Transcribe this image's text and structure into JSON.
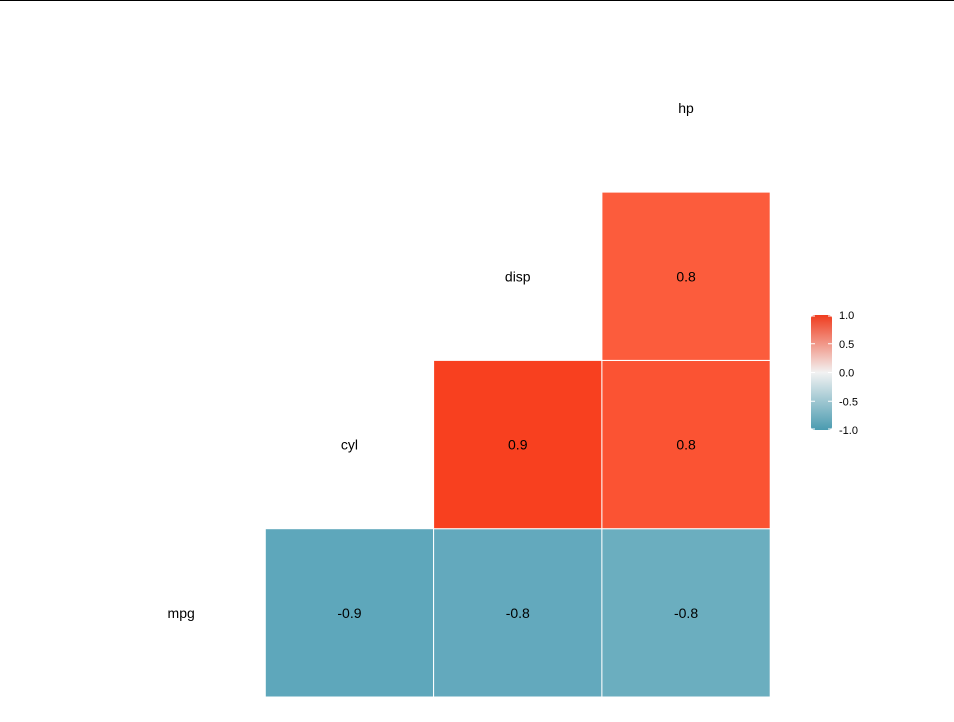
{
  "chart_data": {
    "type": "heatmap",
    "variables": [
      "mpg",
      "cyl",
      "disp",
      "hp"
    ],
    "cells": [
      {
        "row": "cyl",
        "col": "mpg",
        "value": -0.9,
        "label": "-0.9"
      },
      {
        "row": "disp",
        "col": "mpg",
        "value": -0.8,
        "label": "-0.8"
      },
      {
        "row": "hp",
        "col": "mpg",
        "value": -0.8,
        "label": "-0.8"
      },
      {
        "row": "disp",
        "col": "cyl",
        "value": 0.9,
        "label": "0.9"
      },
      {
        "row": "hp",
        "col": "cyl",
        "value": 0.8,
        "label": "0.8"
      },
      {
        "row": "hp",
        "col": "disp",
        "value": 0.8,
        "label": "0.8"
      }
    ],
    "legend": {
      "position": "right",
      "min": -1.0,
      "max": 1.0,
      "ticks": [
        "1.0",
        "0.5",
        "0.0",
        "-0.5",
        "-1.0"
      ],
      "low_color": "#4A9BB0",
      "mid_color": "#F2F2F2",
      "high_color": "#F03C1E"
    },
    "cell_colors": {
      "cyl|mpg": "#5EA7BB",
      "disp|mpg": "#63A9BD",
      "hp|mpg": "#6BAEBF",
      "disp|cyl": "#F8401F",
      "hp|cyl": "#FB5333",
      "hp|disp": "#FC5C3C"
    }
  }
}
